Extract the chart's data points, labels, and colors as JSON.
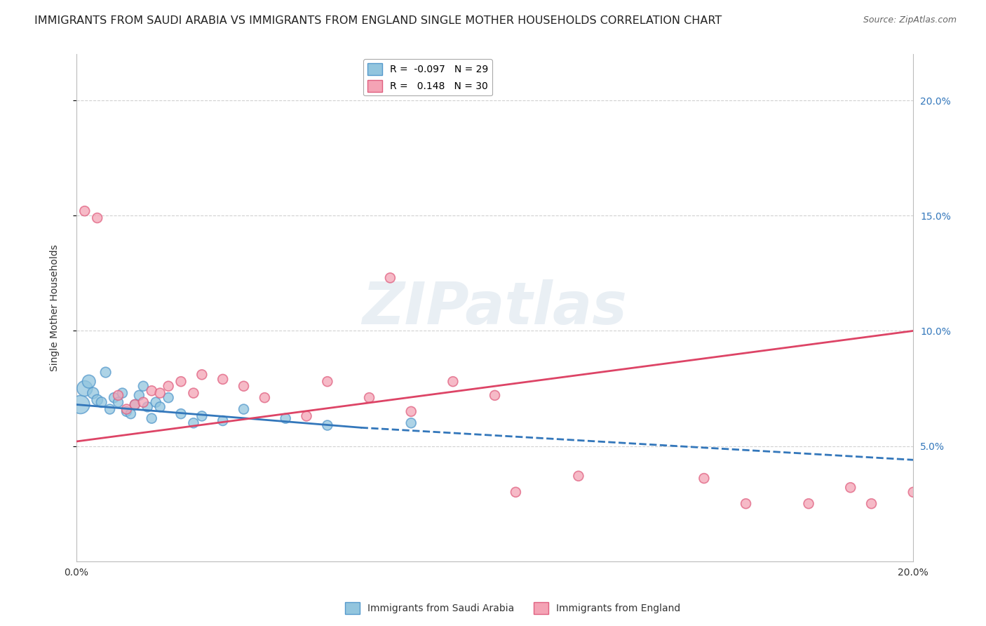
{
  "title": "IMMIGRANTS FROM SAUDI ARABIA VS IMMIGRANTS FROM ENGLAND SINGLE MOTHER HOUSEHOLDS CORRELATION CHART",
  "source": "Source: ZipAtlas.com",
  "ylabel": "Single Mother Households",
  "y_tick_values": [
    0.05,
    0.1,
    0.15,
    0.2
  ],
  "x_range": [
    0.0,
    0.2
  ],
  "y_range": [
    0.0,
    0.22
  ],
  "legend_label_blue": "R =  -0.097   N = 29",
  "legend_label_pink": "R =   0.148   N = 30",
  "legend_bottom_blue": "Immigrants from Saudi Arabia",
  "legend_bottom_pink": "Immigrants from England",
  "blue_color": "#92c5de",
  "pink_color": "#f4a3b5",
  "blue_edge_color": "#5599cc",
  "pink_edge_color": "#e06080",
  "blue_trend_color": "#3377bb",
  "pink_trend_color": "#dd4466",
  "watermark_text": "ZIPatlas",
  "blue_scatter_x": [
    0.001,
    0.002,
    0.003,
    0.004,
    0.005,
    0.006,
    0.007,
    0.008,
    0.009,
    0.01,
    0.011,
    0.012,
    0.013,
    0.014,
    0.015,
    0.016,
    0.017,
    0.018,
    0.019,
    0.02,
    0.022,
    0.025,
    0.028,
    0.03,
    0.035,
    0.04,
    0.05,
    0.06,
    0.08
  ],
  "blue_scatter_y": [
    0.068,
    0.075,
    0.078,
    0.073,
    0.07,
    0.069,
    0.082,
    0.066,
    0.071,
    0.069,
    0.073,
    0.065,
    0.064,
    0.068,
    0.072,
    0.076,
    0.067,
    0.062,
    0.069,
    0.067,
    0.071,
    0.064,
    0.06,
    0.063,
    0.061,
    0.066,
    0.062,
    0.059,
    0.06
  ],
  "blue_scatter_sizes": [
    350,
    250,
    180,
    130,
    120,
    110,
    110,
    100,
    100,
    100,
    100,
    100,
    100,
    100,
    100,
    100,
    100,
    100,
    100,
    100,
    100,
    100,
    100,
    100,
    100,
    100,
    100,
    100,
    100
  ],
  "pink_scatter_x": [
    0.002,
    0.005,
    0.01,
    0.012,
    0.014,
    0.016,
    0.018,
    0.02,
    0.022,
    0.025,
    0.028,
    0.03,
    0.035,
    0.04,
    0.045,
    0.055,
    0.06,
    0.07,
    0.075,
    0.08,
    0.09,
    0.1,
    0.105,
    0.12,
    0.15,
    0.16,
    0.175,
    0.185,
    0.19,
    0.2
  ],
  "pink_scatter_y": [
    0.152,
    0.149,
    0.072,
    0.066,
    0.068,
    0.069,
    0.074,
    0.073,
    0.076,
    0.078,
    0.073,
    0.081,
    0.079,
    0.076,
    0.071,
    0.063,
    0.078,
    0.071,
    0.123,
    0.065,
    0.078,
    0.072,
    0.03,
    0.037,
    0.036,
    0.025,
    0.025,
    0.032,
    0.025,
    0.03
  ],
  "pink_scatter_sizes": [
    100,
    100,
    100,
    100,
    100,
    100,
    100,
    100,
    100,
    100,
    100,
    100,
    100,
    100,
    100,
    100,
    100,
    100,
    100,
    100,
    100,
    100,
    100,
    100,
    100,
    100,
    100,
    100,
    100,
    100
  ],
  "blue_trend_x0": 0.0,
  "blue_trend_y0": 0.068,
  "blue_trend_x1_solid": 0.068,
  "blue_trend_y1_solid": 0.058,
  "blue_trend_x1_dash": 0.2,
  "blue_trend_y1_dash": 0.044,
  "pink_trend_x0": 0.0,
  "pink_trend_y0": 0.052,
  "pink_trend_x1": 0.2,
  "pink_trend_y1": 0.1,
  "grid_color": "#cccccc",
  "grid_linestyle": "--",
  "background_color": "#ffffff",
  "title_fontsize": 11.5,
  "source_fontsize": 9,
  "axis_label_fontsize": 10,
  "tick_fontsize": 10,
  "legend_fontsize": 10,
  "watermark_fontsize": 60,
  "watermark_color": "#d0dce8",
  "watermark_alpha": 0.45
}
